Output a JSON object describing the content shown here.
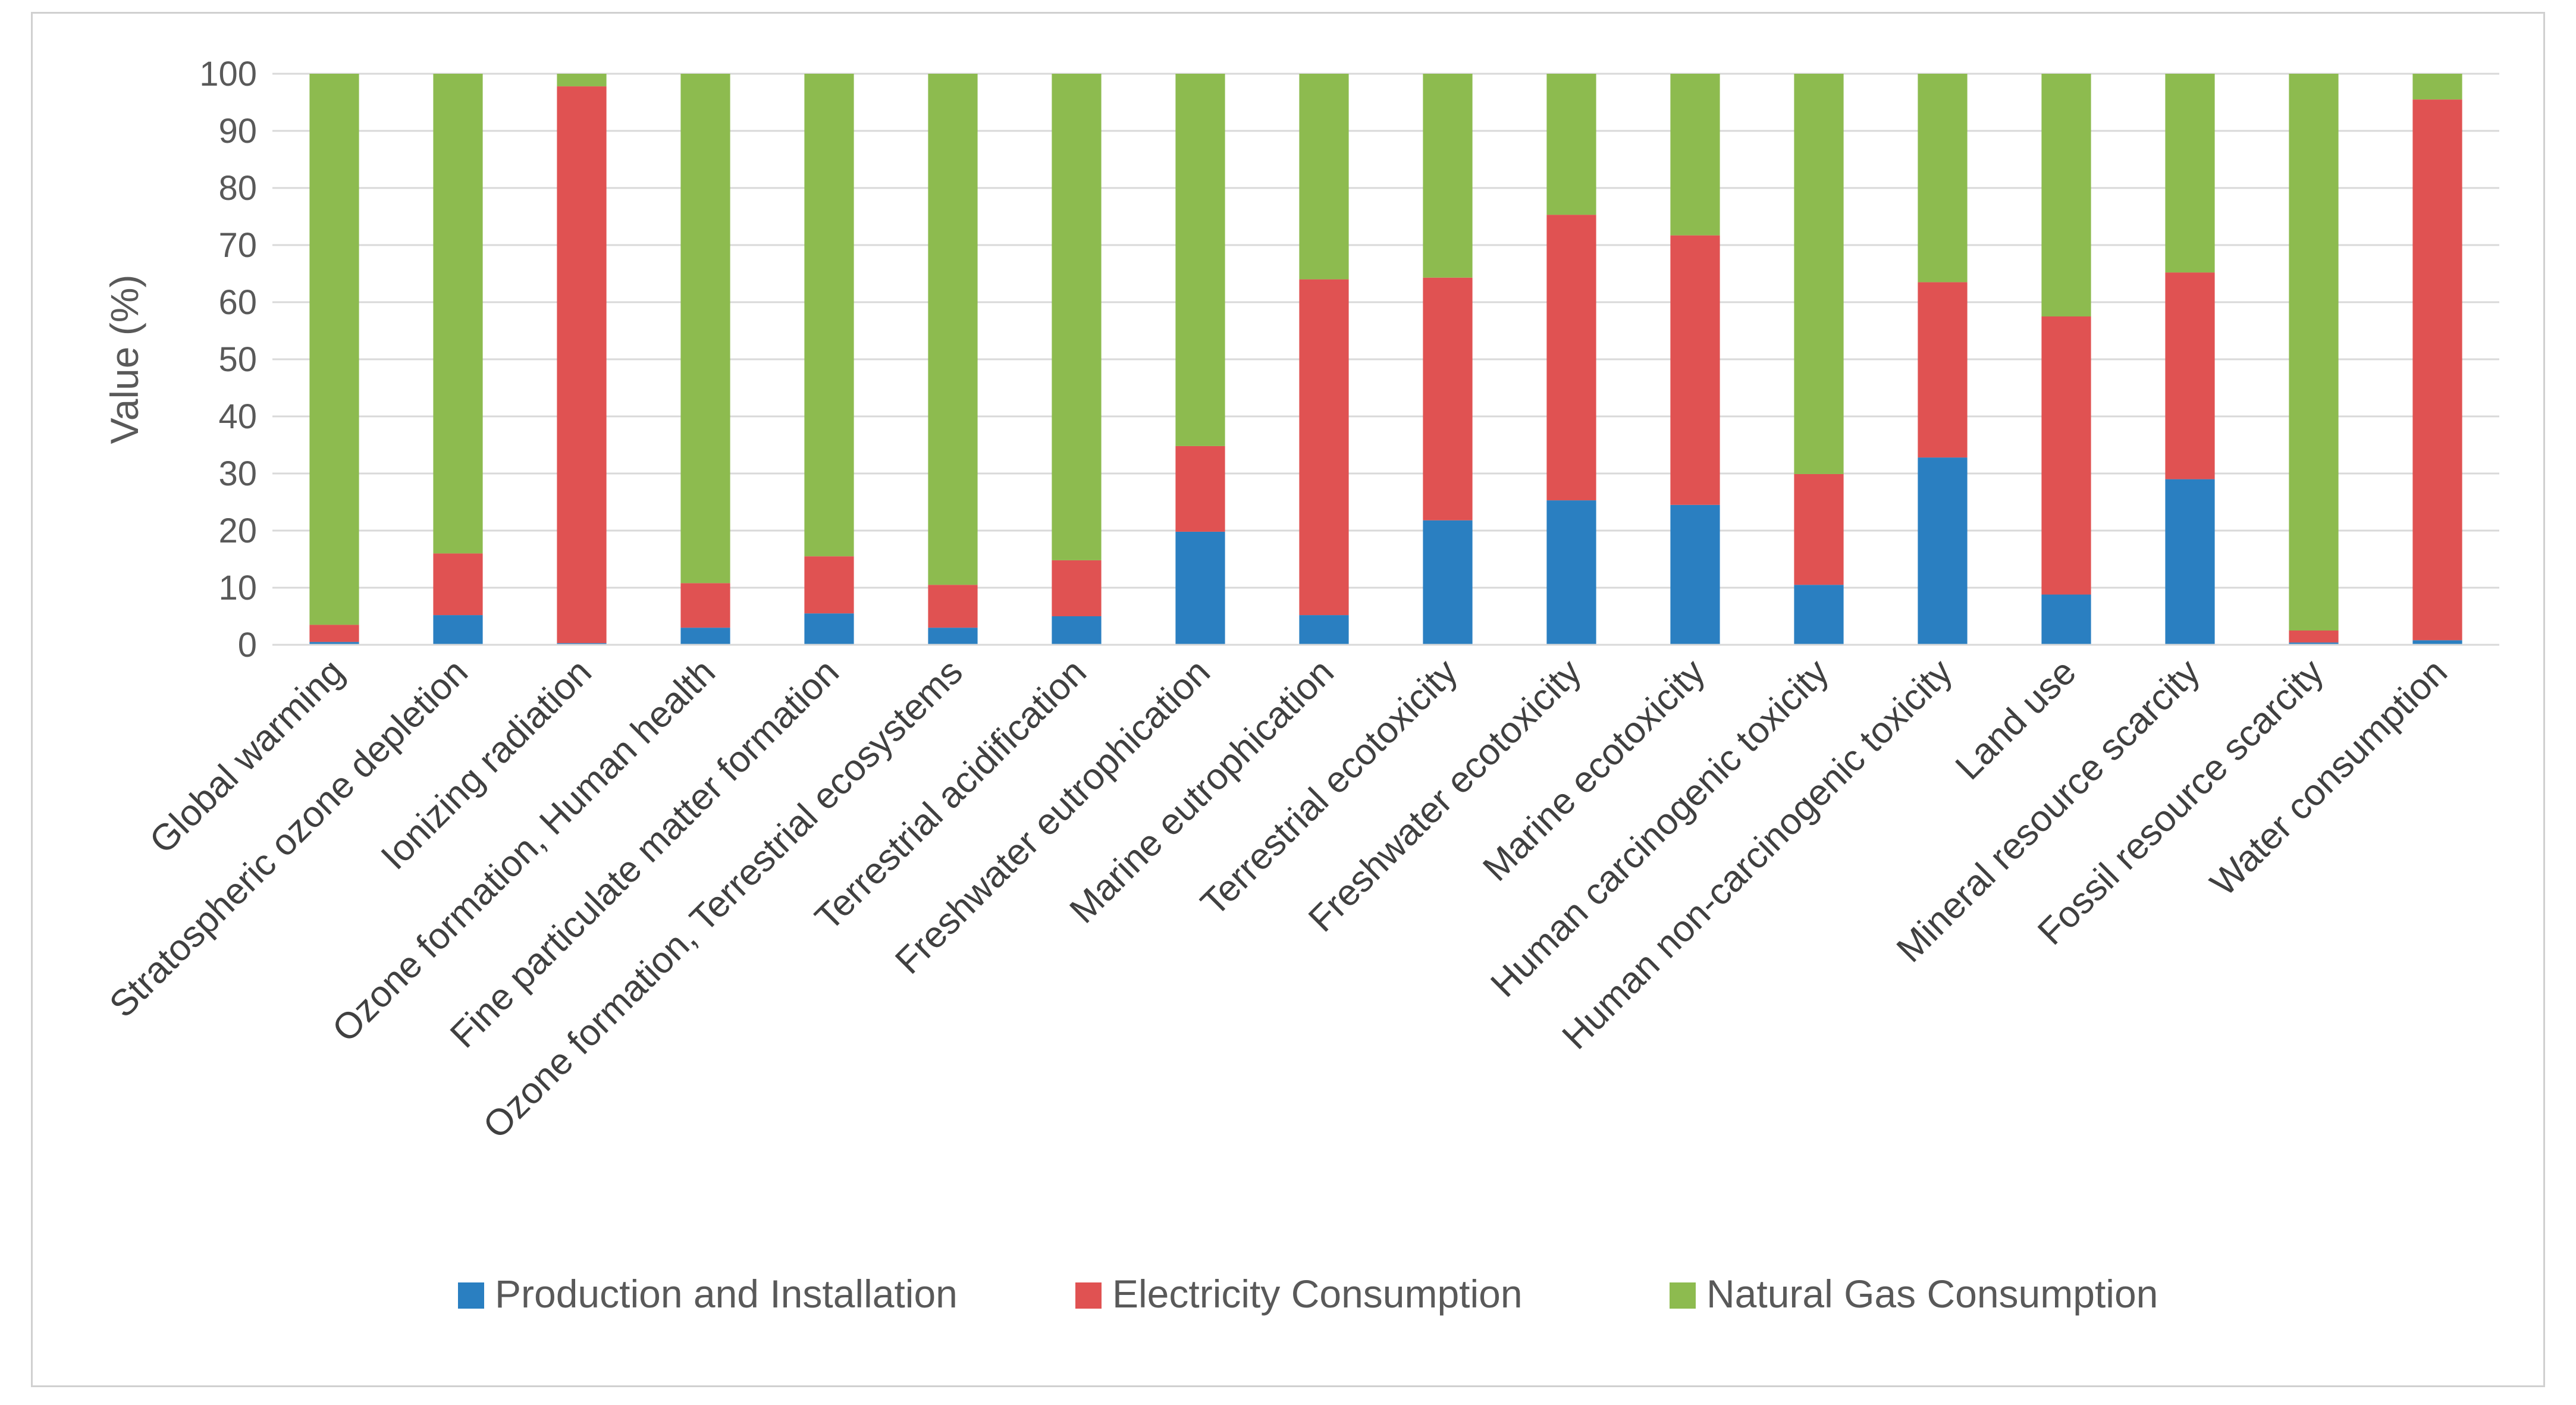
{
  "chart_data": {
    "type": "bar",
    "stacked": true,
    "title": "",
    "xlabel": "",
    "ylabel": "Value (%)",
    "ylim": [
      0,
      100
    ],
    "yticks": [
      0,
      10,
      20,
      30,
      40,
      50,
      60,
      70,
      80,
      90,
      100
    ],
    "grid": true,
    "legend": "bottom",
    "categories": [
      "Global warming",
      "Stratospheric ozone depletion",
      "Ionizing radiation",
      "Ozone formation, Human health",
      "Fine particulate matter formation",
      "Ozone formation, Terrestrial ecosystems",
      "Terrestrial acidification",
      "Freshwater eutrophication",
      "Marine eutrophication",
      "Terrestrial ecotoxicity",
      "Freshwater ecotoxicity",
      "Marine ecotoxicity",
      "Human carcinogenic toxicity",
      "Human non-carcinogenic toxicity",
      "Land use",
      "Mineral resource scarcity",
      "Fossil resource scarcity",
      "Water consumption"
    ],
    "series": [
      {
        "name": "Production and Installation",
        "color": "#2a7fc1",
        "values": [
          0.5,
          5.2,
          0.3,
          3.0,
          5.5,
          3.0,
          5.0,
          19.8,
          5.2,
          21.8,
          25.3,
          24.5,
          10.5,
          32.8,
          8.8,
          29.0,
          0.4,
          0.8
        ]
      },
      {
        "name": "Electricity Consumption",
        "color": "#e05252",
        "values": [
          3.0,
          10.8,
          97.5,
          7.8,
          10.0,
          7.5,
          9.8,
          15.0,
          58.8,
          42.5,
          50.0,
          47.2,
          19.4,
          30.7,
          48.7,
          36.2,
          2.1,
          94.7
        ]
      },
      {
        "name": "Natural Gas Consumption",
        "color": "#8dbb4f",
        "values": [
          96.5,
          84.0,
          2.2,
          89.2,
          84.5,
          89.5,
          85.2,
          65.2,
          36.0,
          35.7,
          24.7,
          28.3,
          70.1,
          36.5,
          42.5,
          34.8,
          97.5,
          4.5
        ]
      }
    ]
  }
}
